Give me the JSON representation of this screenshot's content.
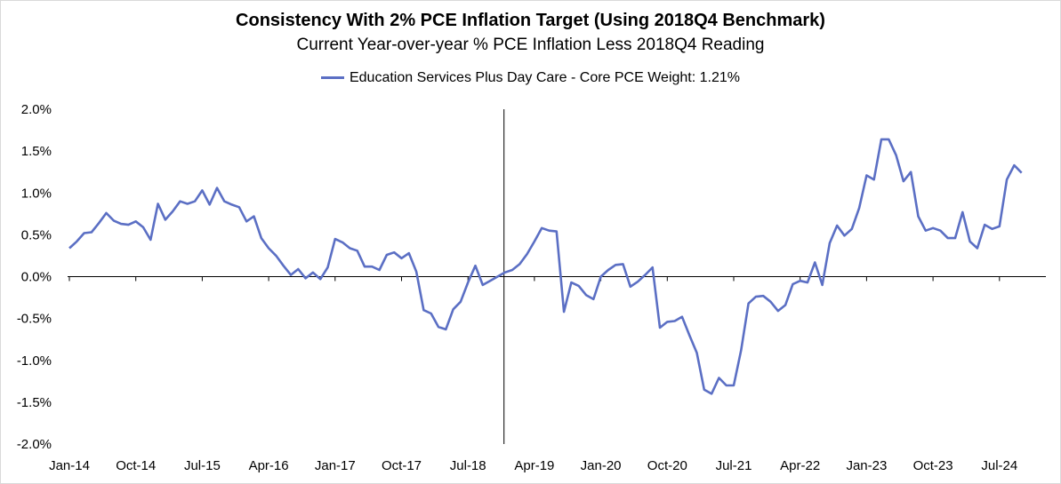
{
  "chart_data": {
    "type": "line",
    "title": "Consistency With 2% PCE Inflation Target (Using 2018Q4 Benchmark)",
    "subtitle": "Current Year-over-year % PCE Inflation Less 2018Q4 Reading",
    "xlabel": "",
    "ylabel": "",
    "ylim": [
      -2.0,
      2.0
    ],
    "y_ticks": [
      "2.0%",
      "1.5%",
      "1.0%",
      "0.5%",
      "0.0%",
      "-0.5%",
      "-1.0%",
      "-1.5%",
      "-2.0%"
    ],
    "x_ticks": [
      "Jan-14",
      "Oct-14",
      "Jul-15",
      "Apr-16",
      "Jan-17",
      "Oct-17",
      "Jul-18",
      "Apr-19",
      "Jan-20",
      "Oct-20",
      "Jul-21",
      "Apr-22",
      "Jan-23",
      "Oct-23",
      "Jul-24"
    ],
    "start": "Jan-14",
    "end": "Sep-24",
    "benchmark_marker": "Dec-18",
    "legend_position": "top",
    "grid": false,
    "series": [
      {
        "name": "Education Services Plus Day Care  - Core PCE Weight: 1.21%",
        "color": "#5b6fc4",
        "values": [
          0.34,
          0.42,
          0.52,
          0.53,
          0.64,
          0.76,
          0.67,
          0.63,
          0.62,
          0.66,
          0.59,
          0.44,
          0.87,
          0.68,
          0.78,
          0.9,
          0.87,
          0.9,
          1.03,
          0.86,
          1.06,
          0.9,
          0.86,
          0.83,
          0.66,
          0.72,
          0.46,
          0.34,
          0.25,
          0.13,
          0.02,
          0.09,
          -0.02,
          0.05,
          -0.03,
          0.11,
          0.45,
          0.41,
          0.34,
          0.31,
          0.12,
          0.12,
          0.08,
          0.26,
          0.29,
          0.22,
          0.28,
          0.06,
          -0.4,
          -0.44,
          -0.6,
          -0.63,
          -0.39,
          -0.3,
          -0.07,
          0.13,
          -0.1,
          -0.05,
          0.0,
          0.05,
          0.08,
          0.15,
          0.27,
          0.42,
          0.58,
          0.55,
          0.54,
          -0.42,
          -0.07,
          -0.11,
          -0.22,
          -0.27,
          0.0,
          0.08,
          0.14,
          0.15,
          -0.12,
          -0.06,
          0.02,
          0.11,
          -0.61,
          -0.54,
          -0.53,
          -0.48,
          -0.7,
          -0.91,
          -1.35,
          -1.4,
          -1.21,
          -1.3,
          -1.3,
          -0.88,
          -0.32,
          -0.24,
          -0.23,
          -0.3,
          -0.41,
          -0.34,
          -0.09,
          -0.05,
          -0.07,
          0.17,
          -0.1,
          0.4,
          0.61,
          0.49,
          0.57,
          0.82,
          1.21,
          1.16,
          1.64,
          1.64,
          1.45,
          1.14,
          1.25,
          0.72,
          0.55,
          0.58,
          0.55,
          0.46,
          0.46,
          0.77,
          0.42,
          0.34,
          0.62,
          0.57,
          0.6,
          1.16,
          1.33,
          1.24
        ]
      }
    ]
  }
}
